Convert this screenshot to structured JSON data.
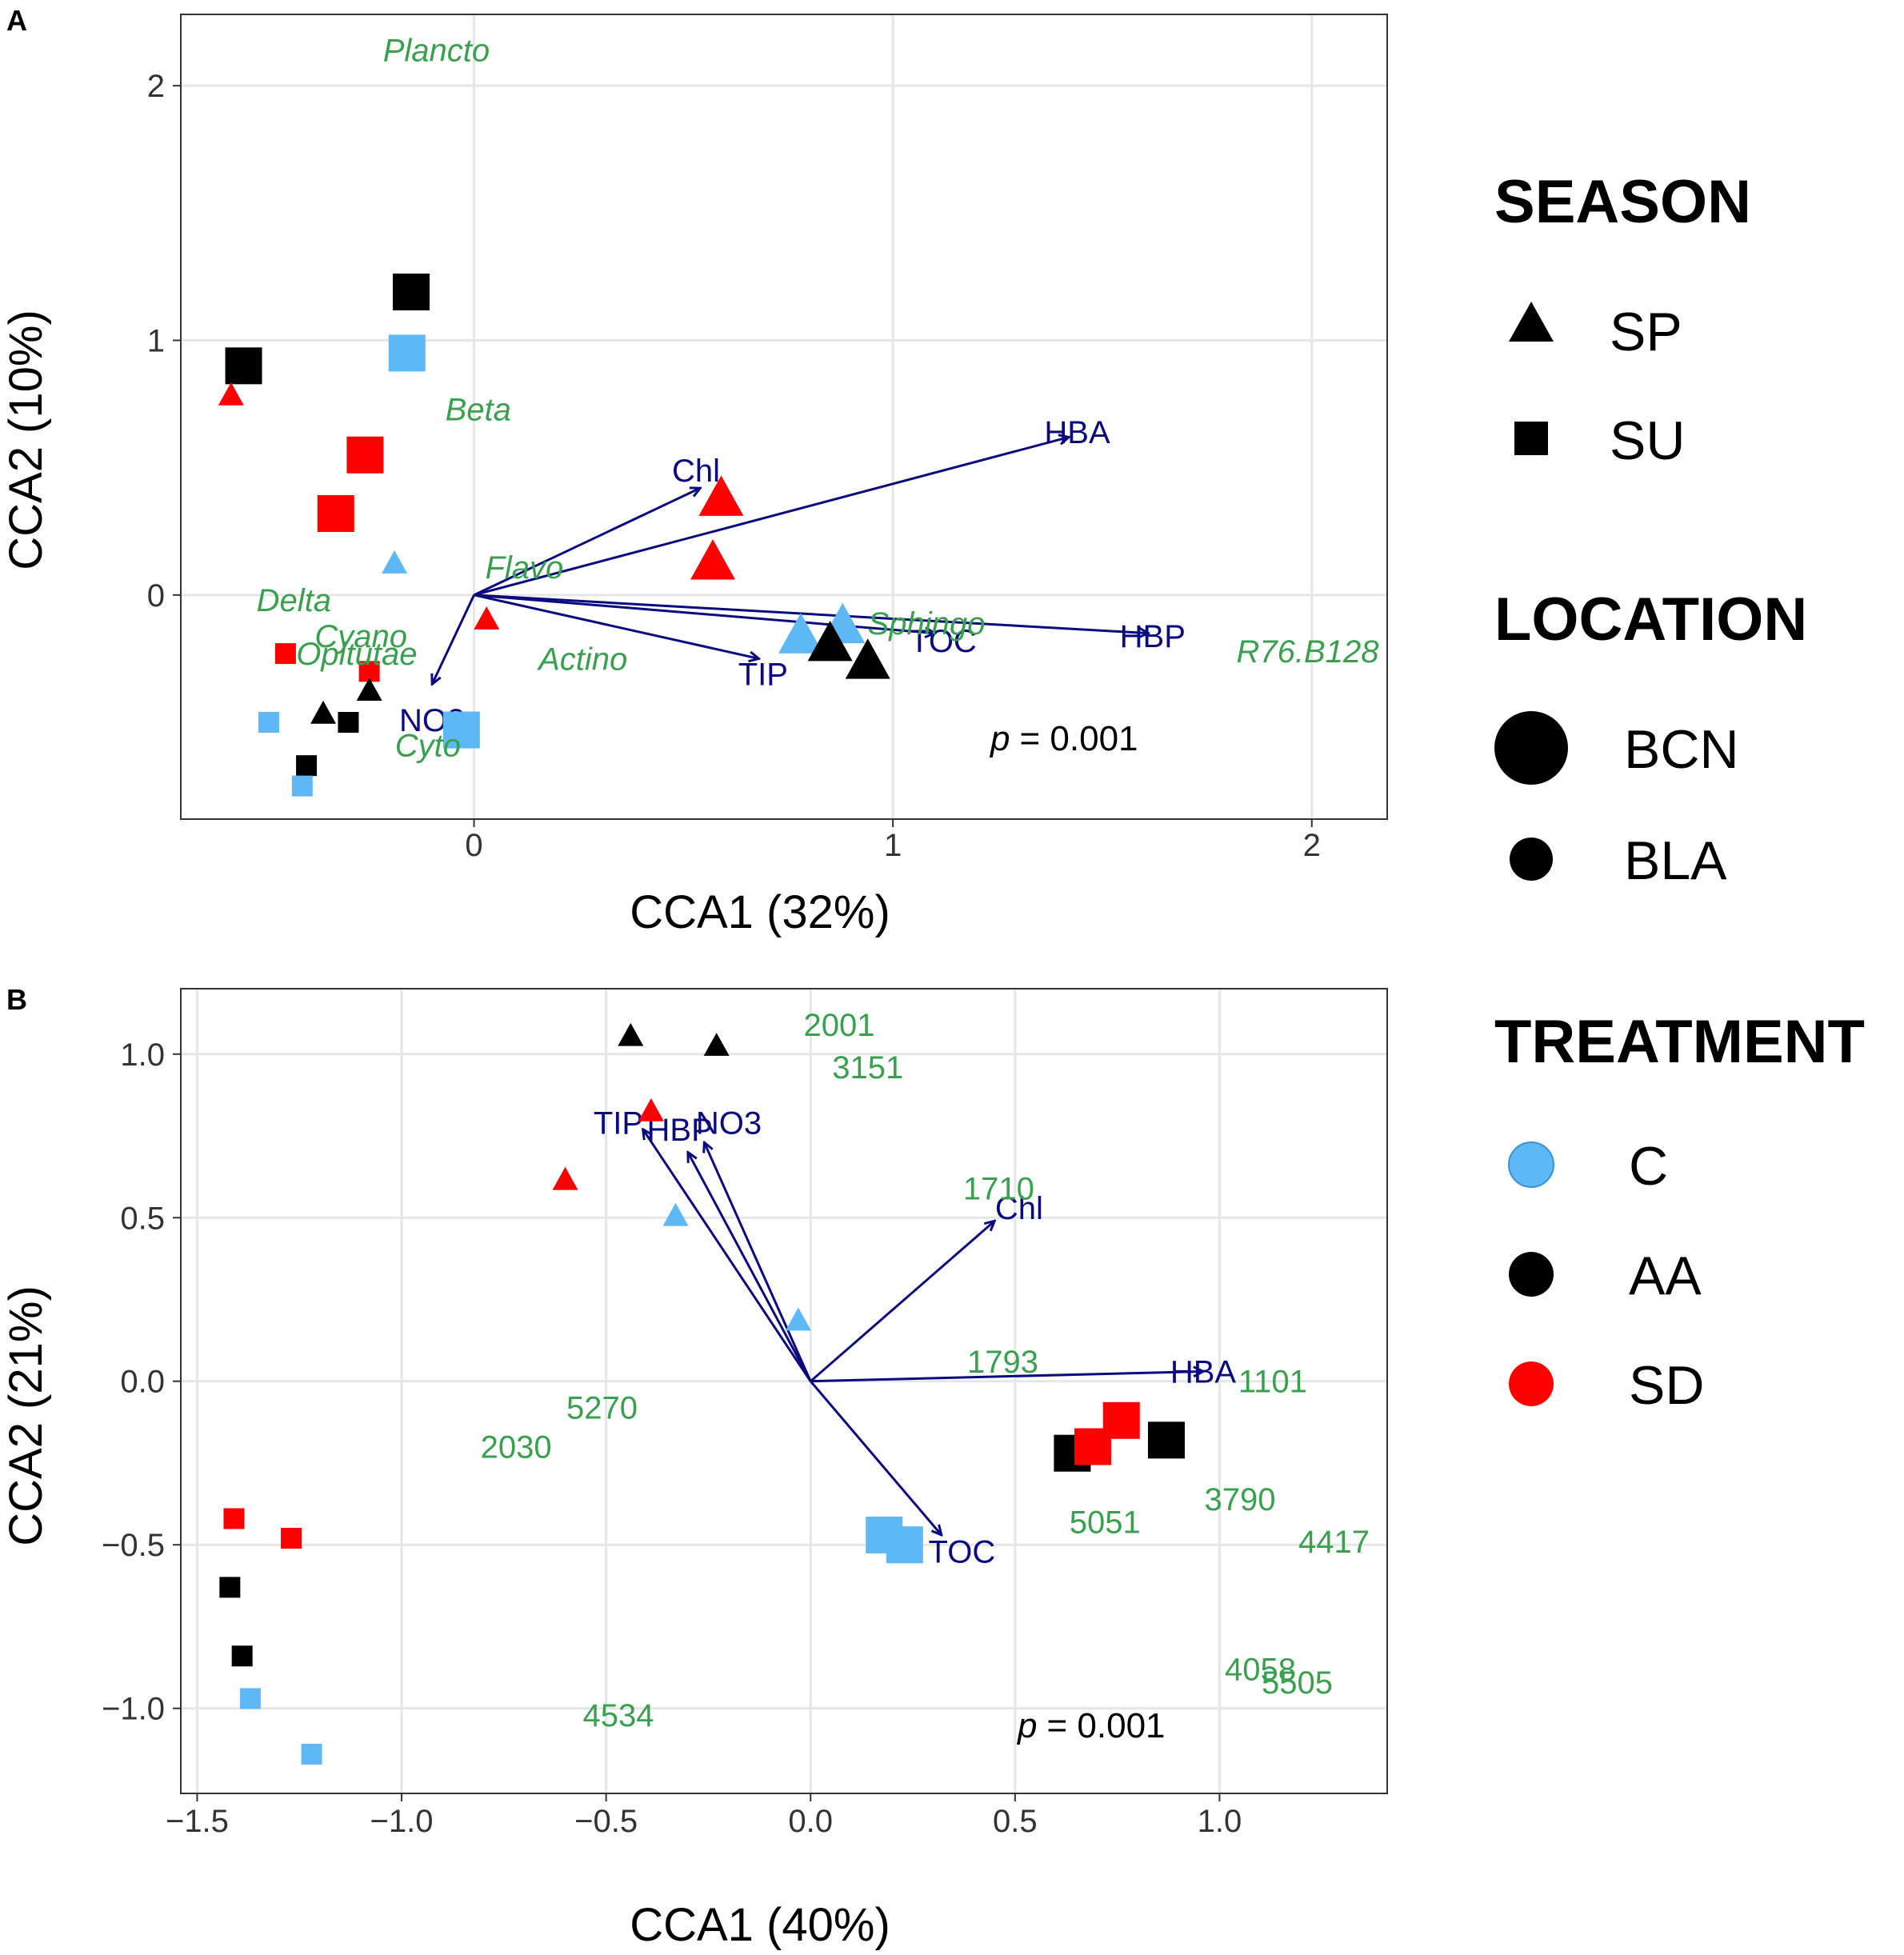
{
  "colors": {
    "C": "#5db8f5",
    "AA": "#000000",
    "SD": "#ff0000",
    "env_arrow": "#0b0b80",
    "species_text": "#3aa050",
    "grid": "#e6e6e6"
  },
  "legend": {
    "season": {
      "title": "SEASON",
      "items": [
        {
          "label": "SP",
          "shape": "triangle"
        },
        {
          "label": "SU",
          "shape": "square"
        }
      ]
    },
    "location": {
      "title": "LOCATION",
      "items": [
        {
          "label": "BCN",
          "size": "large"
        },
        {
          "label": "BLA",
          "size": "small"
        }
      ]
    },
    "treatment": {
      "title": "TREATMENT",
      "items": [
        {
          "label": "C",
          "color": "#5db8f5"
        },
        {
          "label": "AA",
          "color": "#000000"
        },
        {
          "label": "SD",
          "color": "#ff0000"
        }
      ]
    }
  },
  "chart_data": [
    {
      "panel": "A",
      "type": "scatter",
      "xlabel": "CCA1 (32%)",
      "ylabel": "CCA2 (10%)",
      "xlim": [
        -0.7,
        2.18
      ],
      "ylim": [
        -0.88,
        2.28
      ],
      "xticks": [
        0,
        1,
        2
      ],
      "xtick_labels": [
        "0",
        "1",
        "2"
      ],
      "yticks": [
        0,
        1,
        2
      ],
      "ytick_labels": [
        "0",
        "1",
        "2"
      ],
      "p_prefix": "p",
      "p_value": "= 0.001",
      "samples": [
        {
          "x": -0.15,
          "y": 1.19,
          "shape": "square",
          "size": "large",
          "treatment": "AA"
        },
        {
          "x": -0.55,
          "y": 0.9,
          "shape": "square",
          "size": "large",
          "treatment": "AA"
        },
        {
          "x": -0.16,
          "y": 0.95,
          "shape": "square",
          "size": "large",
          "treatment": "C"
        },
        {
          "x": -0.26,
          "y": 0.55,
          "shape": "square",
          "size": "large",
          "treatment": "SD"
        },
        {
          "x": -0.33,
          "y": 0.32,
          "shape": "square",
          "size": "large",
          "treatment": "SD"
        },
        {
          "x": -0.58,
          "y": 0.79,
          "shape": "triangle",
          "size": "small",
          "treatment": "SD"
        },
        {
          "x": -0.19,
          "y": 0.13,
          "shape": "triangle",
          "size": "small",
          "treatment": "C"
        },
        {
          "x": 0.59,
          "y": 0.39,
          "shape": "triangle",
          "size": "large",
          "treatment": "SD"
        },
        {
          "x": 0.57,
          "y": 0.14,
          "shape": "triangle",
          "size": "large",
          "treatment": "SD"
        },
        {
          "x": 0.78,
          "y": -0.15,
          "shape": "triangle",
          "size": "large",
          "treatment": "C"
        },
        {
          "x": 0.88,
          "y": -0.11,
          "shape": "triangle",
          "size": "large",
          "treatment": "C"
        },
        {
          "x": 0.85,
          "y": -0.18,
          "shape": "triangle",
          "size": "large",
          "treatment": "AA"
        },
        {
          "x": 0.94,
          "y": -0.25,
          "shape": "triangle",
          "size": "large",
          "treatment": "AA"
        },
        {
          "x": 0.03,
          "y": -0.09,
          "shape": "triangle",
          "size": "small",
          "treatment": "SD"
        },
        {
          "x": -0.45,
          "y": -0.23,
          "shape": "square",
          "size": "small",
          "treatment": "SD"
        },
        {
          "x": -0.25,
          "y": -0.3,
          "shape": "square",
          "size": "small",
          "treatment": "SD"
        },
        {
          "x": -0.25,
          "y": -0.37,
          "shape": "triangle",
          "size": "small",
          "treatment": "AA"
        },
        {
          "x": -0.36,
          "y": -0.46,
          "shape": "triangle",
          "size": "small",
          "treatment": "AA"
        },
        {
          "x": -0.3,
          "y": -0.5,
          "shape": "square",
          "size": "small",
          "treatment": "AA"
        },
        {
          "x": -0.49,
          "y": -0.5,
          "shape": "square",
          "size": "small",
          "treatment": "C"
        },
        {
          "x": -0.4,
          "y": -0.67,
          "shape": "square",
          "size": "small",
          "treatment": "AA"
        },
        {
          "x": -0.41,
          "y": -0.75,
          "shape": "square",
          "size": "small",
          "treatment": "C"
        },
        {
          "x": -0.03,
          "y": -0.53,
          "shape": "square",
          "size": "large",
          "treatment": "C"
        }
      ],
      "arrow_origin": [
        0,
        0
      ],
      "env_arrows": [
        {
          "label": "HBA",
          "x": 1.42,
          "y": 0.62,
          "lx": 1.44,
          "ly": 0.64
        },
        {
          "label": "Chl",
          "x": 0.54,
          "y": 0.42,
          "lx": 0.53,
          "ly": 0.49
        },
        {
          "label": "HBP",
          "x": 1.61,
          "y": -0.15,
          "lx": 1.62,
          "ly": -0.16
        },
        {
          "label": "TOC",
          "x": 1.1,
          "y": -0.15,
          "lx": 1.12,
          "ly": -0.18
        },
        {
          "label": "TIP",
          "x": 0.68,
          "y": -0.25,
          "lx": 0.69,
          "ly": -0.31
        },
        {
          "label": "NO3",
          "x": -0.1,
          "y": -0.35,
          "lx": -0.1,
          "ly": -0.49
        }
      ],
      "species": [
        {
          "label": "Plancto",
          "x": -0.09,
          "y": 2.14
        },
        {
          "label": "Beta",
          "x": 0.01,
          "y": 0.73
        },
        {
          "label": "Flavo",
          "x": 0.12,
          "y": 0.11
        },
        {
          "label": "Delta",
          "x": -0.43,
          "y": -0.02
        },
        {
          "label": "Cyano",
          "x": -0.27,
          "y": -0.16
        },
        {
          "label": "Opitutae",
          "x": -0.28,
          "y": -0.23
        },
        {
          "label": "Actino",
          "x": 0.26,
          "y": -0.25
        },
        {
          "label": "Cyto",
          "x": -0.11,
          "y": -0.59
        },
        {
          "label": "Sphingo",
          "x": 1.08,
          "y": -0.11
        },
        {
          "label": "R76.B128",
          "x": 1.99,
          "y": -0.22
        }
      ]
    },
    {
      "panel": "B",
      "type": "scatter",
      "xlabel": "CCA1 (40%)",
      "ylabel": "CCA2 (21%)",
      "xlim": [
        -1.54,
        1.41
      ],
      "ylim": [
        -1.26,
        1.2
      ],
      "xticks": [
        -1.5,
        -1.0,
        -0.5,
        0.0,
        0.5,
        1.0
      ],
      "xtick_labels": [
        "−1.5",
        "−1.0",
        "−0.5",
        "0.0",
        "0.5",
        "1.0"
      ],
      "yticks": [
        1.0,
        0.5,
        0.0,
        -0.5,
        -1.0
      ],
      "ytick_labels": [
        "1.0",
        "0.5",
        "0.0",
        "−0.5",
        "−1.0"
      ],
      "p_prefix": "p",
      "p_value": "= 0.001",
      "samples": [
        {
          "x": -0.44,
          "y": 1.06,
          "shape": "triangle",
          "size": "small",
          "treatment": "AA"
        },
        {
          "x": -0.23,
          "y": 1.03,
          "shape": "triangle",
          "size": "small",
          "treatment": "AA"
        },
        {
          "x": -0.39,
          "y": 0.83,
          "shape": "triangle",
          "size": "small",
          "treatment": "SD"
        },
        {
          "x": -0.6,
          "y": 0.62,
          "shape": "triangle",
          "size": "small",
          "treatment": "SD"
        },
        {
          "x": -0.33,
          "y": 0.51,
          "shape": "triangle",
          "size": "small",
          "treatment": "C"
        },
        {
          "x": -0.03,
          "y": 0.19,
          "shape": "triangle",
          "size": "small",
          "treatment": "C"
        },
        {
          "x": 0.64,
          "y": -0.22,
          "shape": "square",
          "size": "large",
          "treatment": "AA"
        },
        {
          "x": 0.87,
          "y": -0.18,
          "shape": "square",
          "size": "large",
          "treatment": "AA"
        },
        {
          "x": 0.76,
          "y": -0.12,
          "shape": "square",
          "size": "large",
          "treatment": "SD"
        },
        {
          "x": 0.69,
          "y": -0.2,
          "shape": "square",
          "size": "large",
          "treatment": "SD"
        },
        {
          "x": 0.18,
          "y": -0.47,
          "shape": "square",
          "size": "large",
          "treatment": "C"
        },
        {
          "x": 0.23,
          "y": -0.5,
          "shape": "square",
          "size": "large",
          "treatment": "C"
        },
        {
          "x": -1.41,
          "y": -0.42,
          "shape": "square",
          "size": "small",
          "treatment": "SD"
        },
        {
          "x": -1.27,
          "y": -0.48,
          "shape": "square",
          "size": "small",
          "treatment": "SD"
        },
        {
          "x": -1.42,
          "y": -0.63,
          "shape": "square",
          "size": "small",
          "treatment": "AA"
        },
        {
          "x": -1.39,
          "y": -0.84,
          "shape": "square",
          "size": "small",
          "treatment": "AA"
        },
        {
          "x": -1.37,
          "y": -0.97,
          "shape": "square",
          "size": "small",
          "treatment": "C"
        },
        {
          "x": -1.22,
          "y": -1.14,
          "shape": "square",
          "size": "small",
          "treatment": "C"
        }
      ],
      "arrow_origin": [
        0,
        0
      ],
      "env_arrows": [
        {
          "label": "TIP",
          "x": -0.41,
          "y": 0.77,
          "lx": -0.47,
          "ly": 0.79
        },
        {
          "label": "HBP",
          "x": -0.3,
          "y": 0.7,
          "lx": -0.32,
          "ly": 0.77
        },
        {
          "label": "NO3",
          "x": -0.26,
          "y": 0.73,
          "lx": -0.2,
          "ly": 0.79
        },
        {
          "label": "Chl",
          "x": 0.45,
          "y": 0.49,
          "lx": 0.51,
          "ly": 0.53
        },
        {
          "label": "HBA",
          "x": 0.96,
          "y": 0.03,
          "lx": 0.96,
          "ly": 0.03
        },
        {
          "label": "TOC",
          "x": 0.32,
          "y": -0.47,
          "lx": 0.37,
          "ly": -0.52
        }
      ],
      "species": [
        {
          "label": "2001",
          "x": 0.07,
          "y": 1.09
        },
        {
          "label": "3151",
          "x": 0.14,
          "y": 0.96
        },
        {
          "label": "1710",
          "x": 0.46,
          "y": 0.59
        },
        {
          "label": "1793",
          "x": 0.47,
          "y": 0.06
        },
        {
          "label": "1101",
          "x": 1.13,
          "y": 0.0
        },
        {
          "label": "5270",
          "x": -0.51,
          "y": -0.08
        },
        {
          "label": "2030",
          "x": -0.72,
          "y": -0.2
        },
        {
          "label": "3790",
          "x": 1.05,
          "y": -0.36
        },
        {
          "label": "5051",
          "x": 0.72,
          "y": -0.43
        },
        {
          "label": "4417",
          "x": 1.28,
          "y": -0.49
        },
        {
          "label": "4058",
          "x": 1.1,
          "y": -0.88
        },
        {
          "label": "5505",
          "x": 1.19,
          "y": -0.92
        },
        {
          "label": "4534",
          "x": -0.47,
          "y": -1.02
        }
      ]
    }
  ]
}
